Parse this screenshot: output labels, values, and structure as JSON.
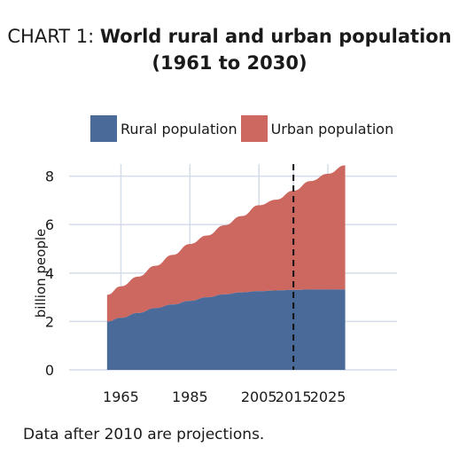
{
  "title": {
    "prefix": "CHART 1: ",
    "main": "World rural and urban population",
    "line2": "(1961 to 2030)"
  },
  "footnote": "Data after 2010 are projections.",
  "colors": {
    "rural": "#4a6b9a",
    "urban": "#cd6860",
    "grid": "#d5dcea",
    "text": "#1a1a1a"
  },
  "chart_data": {
    "type": "area",
    "stacked": true,
    "title": "CHART 1: World rural and urban population (1961 to 2030)",
    "xlabel": "",
    "ylabel": "billion people",
    "xlim": [
      1950,
      2045
    ],
    "ylim": [
      0,
      8.5
    ],
    "xticks": [
      1965,
      1985,
      2005,
      2015,
      2025
    ],
    "yticks": [
      0,
      2,
      4,
      6,
      8
    ],
    "grid": true,
    "legend": "top",
    "vline": {
      "x": 2015,
      "style": "dashed"
    },
    "x": [
      1961,
      1965,
      1970,
      1975,
      1980,
      1985,
      1990,
      1995,
      2000,
      2005,
      2010,
      2015,
      2020,
      2025,
      2030
    ],
    "series": [
      {
        "name": "Rural population",
        "color": "#4a6b9a",
        "values": [
          2.0,
          2.15,
          2.35,
          2.55,
          2.7,
          2.85,
          3.0,
          3.12,
          3.2,
          3.25,
          3.28,
          3.3,
          3.32,
          3.32,
          3.32
        ]
      },
      {
        "name": "Urban population",
        "color": "#cd6860",
        "values": [
          1.1,
          1.3,
          1.5,
          1.75,
          2.05,
          2.35,
          2.55,
          2.85,
          3.15,
          3.55,
          3.75,
          4.1,
          4.48,
          4.78,
          5.13
        ]
      }
    ]
  }
}
